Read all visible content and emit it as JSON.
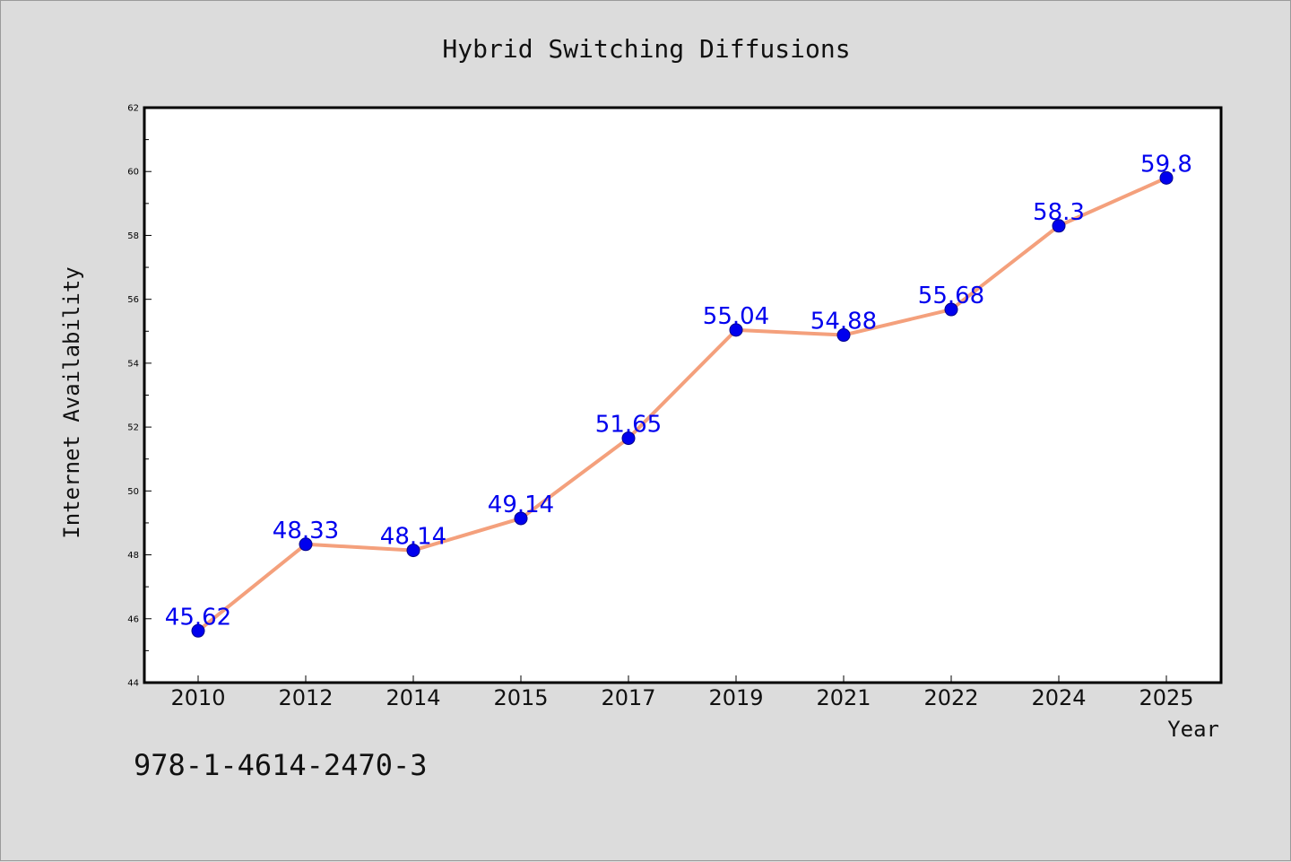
{
  "chart_data": {
    "type": "line",
    "title": "Hybrid Switching Diffusions",
    "xlabel": "Year",
    "ylabel": "Internet Availability",
    "categories": [
      "2010",
      "2012",
      "2014",
      "2015",
      "2017",
      "2019",
      "2021",
      "2022",
      "2024",
      "2025"
    ],
    "series": [
      {
        "values": [
          45.62,
          48.33,
          48.14,
          49.14,
          51.65,
          55.04,
          54.88,
          55.68,
          58.3,
          59.8
        ],
        "data_labels": [
          "45.62",
          "48.33",
          "48.14",
          "49.14",
          "51.65",
          "55.04",
          "54.88",
          "55.68",
          "58.3",
          "59.8"
        ],
        "line_color": "#f4a07c",
        "marker_color": "#0000ee"
      }
    ],
    "ylim": [
      44,
      62
    ],
    "yticks": [
      "44",
      "46",
      "48",
      "50",
      "52",
      "54",
      "56",
      "58",
      "60",
      "62"
    ],
    "grid": false,
    "legend": "none",
    "label_color": "#0000ee"
  },
  "footer": {
    "isbn": "978-1-4614-2470-3"
  }
}
